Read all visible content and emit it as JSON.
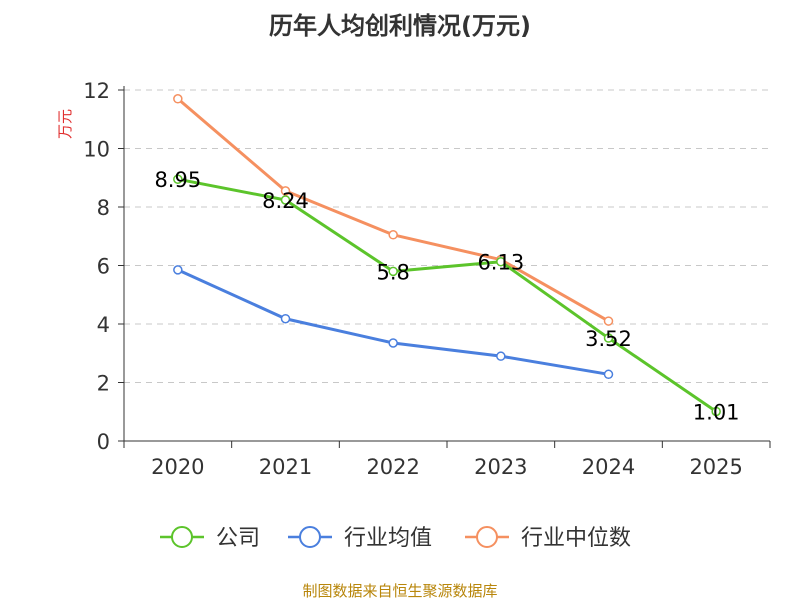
{
  "chart_data": {
    "type": "line",
    "title": "历年人均创利情况(万元)",
    "ylabel": "万元",
    "xlabel": "",
    "categories": [
      "2020",
      "2021",
      "2022",
      "2023",
      "2024",
      "2025"
    ],
    "ylim": [
      0,
      12
    ],
    "yticks": [
      0,
      2,
      4,
      6,
      8,
      10,
      12
    ],
    "grid": true,
    "legend_position": "bottom-center",
    "series": [
      {
        "name": "公司",
        "color": "#5cc42b",
        "values": [
          8.95,
          8.24,
          5.8,
          6.13,
          3.52,
          1.01
        ],
        "data_labels": [
          "8.95",
          "8.24",
          "5.8",
          "6.13",
          "3.52",
          "1.01"
        ]
      },
      {
        "name": "行业均值",
        "color": "#4a7fde",
        "values": [
          5.85,
          4.18,
          3.35,
          2.9,
          2.28,
          null
        ]
      },
      {
        "name": "行业中位数",
        "color": "#f59060",
        "values": [
          11.7,
          8.55,
          7.05,
          6.2,
          4.1,
          null
        ]
      }
    ]
  },
  "footer": {
    "source": "制图数据来自恒生聚源数据库"
  }
}
